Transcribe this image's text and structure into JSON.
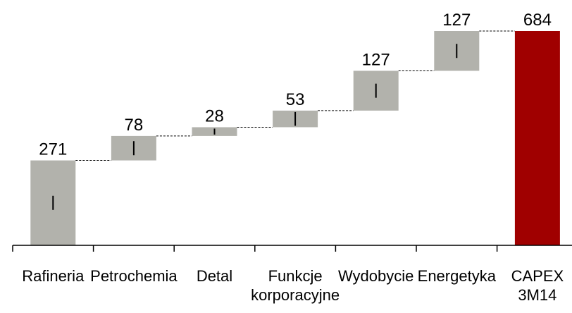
{
  "chart_data": {
    "type": "bar",
    "subtype": "waterfall",
    "categories": [
      [
        "Rafineria"
      ],
      [
        "Petrochemia"
      ],
      [
        "Detal"
      ],
      [
        "Funkcje",
        "korporacyjne"
      ],
      [
        "Wydobycie"
      ],
      [
        "Energetyka"
      ],
      [
        "CAPEX",
        "3M14"
      ]
    ],
    "values": [
      271,
      78,
      28,
      53,
      127,
      127,
      684
    ],
    "value_labels": [
      "271",
      "78",
      "28",
      "53",
      "127",
      "127",
      "684"
    ],
    "total_index": 6,
    "ylim": [
      0,
      684
    ],
    "grid": false,
    "legend": "none",
    "colors": {
      "increment": "#b2b2ac",
      "total": "#a00000",
      "connector": "#000000",
      "axis": "#000000"
    }
  }
}
